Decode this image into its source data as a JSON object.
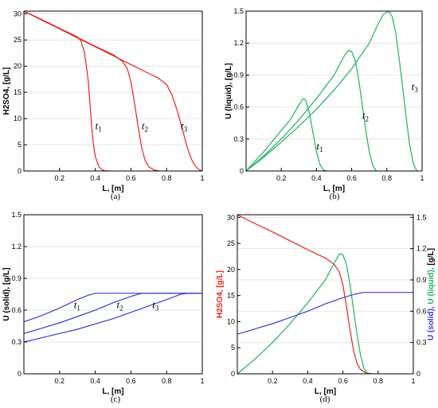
{
  "colors": {
    "red": "#e8241c",
    "green": "#20b060",
    "blue": "#3a3ad8",
    "grid": "#e4e4e4"
  },
  "chart_data": [
    {
      "id": "a",
      "type": "line",
      "panel_label": "(a)",
      "xlabel": "L, [m]",
      "ylabel": "H2SO4, [g/L]",
      "xlim": [
        0,
        1
      ],
      "ylim": [
        0,
        30.5
      ],
      "xticks": [
        0.2,
        0.4,
        0.6,
        0.8,
        1
      ],
      "xtick_labels": [
        "0.2",
        "0.4",
        "0.6",
        "0.8",
        "1"
      ],
      "yticks": [
        0,
        5,
        10,
        15,
        20,
        25,
        30
      ],
      "ytick_labels": [
        "0",
        "5",
        "10",
        "15",
        "20",
        "25",
        "30"
      ],
      "grid": true,
      "series": [
        {
          "label": "t",
          "sub": "1",
          "label_at": [
            0.4,
            8.0
          ],
          "color": "#e8241c",
          "x": [
            0,
            0.1,
            0.2,
            0.3,
            0.32,
            0.34,
            0.36,
            0.37,
            0.38,
            0.39,
            0.4,
            0.42,
            0.44,
            0.46,
            0.48
          ],
          "y": [
            30.5,
            28.9,
            27.2,
            25.6,
            24.8,
            22.5,
            17.5,
            13.0,
            8.5,
            5.0,
            2.8,
            0.8,
            0.2,
            0,
            0
          ]
        },
        {
          "label": "t",
          "sub": "2",
          "label_at": [
            0.66,
            8.0
          ],
          "color": "#e8241c",
          "x": [
            0,
            0.1,
            0.2,
            0.3,
            0.4,
            0.5,
            0.55,
            0.58,
            0.6,
            0.62,
            0.64,
            0.66,
            0.68,
            0.7,
            0.73,
            0.76
          ],
          "y": [
            30.5,
            28.8,
            27.2,
            25.5,
            23.8,
            22.2,
            21.0,
            19.5,
            17.0,
            13.0,
            8.5,
            4.5,
            2.0,
            0.8,
            0.2,
            0
          ]
        },
        {
          "label": "t",
          "sub": "3",
          "label_at": [
            0.88,
            8.0
          ],
          "color": "#e8241c",
          "x": [
            0,
            0.1,
            0.2,
            0.3,
            0.4,
            0.5,
            0.6,
            0.7,
            0.75,
            0.8,
            0.83,
            0.86,
            0.88,
            0.9,
            0.92,
            0.94,
            0.96,
            0.98,
            1.0
          ],
          "y": [
            30.5,
            28.8,
            27.1,
            25.4,
            23.7,
            22.0,
            20.3,
            18.6,
            17.8,
            16.5,
            14.5,
            11.5,
            9.0,
            6.5,
            4.0,
            2.2,
            1.0,
            0.3,
            0
          ]
        }
      ]
    },
    {
      "id": "b",
      "type": "line",
      "panel_label": "(b)",
      "xlabel": "L, [m]",
      "ylabel": "U (liquid), [g/L]",
      "xlim": [
        0,
        1
      ],
      "ylim": [
        0,
        1.5
      ],
      "xticks": [
        0.2,
        0.4,
        0.6,
        0.8,
        1
      ],
      "xtick_labels": [
        "0.2",
        "0.4",
        "0.6",
        "0.8",
        "1"
      ],
      "yticks": [
        0,
        0.3,
        0.6,
        0.9,
        1.2,
        1.5
      ],
      "ytick_labels": [
        "0",
        "0.3",
        "0.6",
        "0.9",
        "1.2",
        "1.5"
      ],
      "grid": true,
      "series": [
        {
          "label": "t",
          "sub": "1",
          "label_at": [
            0.4,
            0.2
          ],
          "color": "#20b060",
          "x": [
            0,
            0.05,
            0.1,
            0.15,
            0.2,
            0.25,
            0.3,
            0.32,
            0.33,
            0.34,
            0.36,
            0.38,
            0.4,
            0.42,
            0.44,
            0.46
          ],
          "y": [
            0,
            0.09,
            0.18,
            0.28,
            0.38,
            0.48,
            0.62,
            0.67,
            0.68,
            0.66,
            0.54,
            0.36,
            0.18,
            0.06,
            0.01,
            0
          ]
        },
        {
          "label": "t",
          "sub": "2",
          "label_at": [
            0.66,
            0.49
          ],
          "color": "#20b060",
          "x": [
            0,
            0.1,
            0.2,
            0.3,
            0.4,
            0.5,
            0.55,
            0.58,
            0.6,
            0.62,
            0.64,
            0.66,
            0.68,
            0.7,
            0.72,
            0.74
          ],
          "y": [
            0,
            0.14,
            0.3,
            0.48,
            0.68,
            0.9,
            1.06,
            1.13,
            1.12,
            1.04,
            0.86,
            0.62,
            0.38,
            0.18,
            0.05,
            0
          ]
        },
        {
          "label": "t",
          "sub": "3",
          "label_at": [
            0.94,
            0.76
          ],
          "color": "#20b060",
          "x": [
            0,
            0.1,
            0.2,
            0.3,
            0.4,
            0.5,
            0.6,
            0.7,
            0.75,
            0.78,
            0.81,
            0.83,
            0.85,
            0.87,
            0.89,
            0.91,
            0.93,
            0.95,
            0.97
          ],
          "y": [
            0,
            0.13,
            0.27,
            0.42,
            0.58,
            0.76,
            0.96,
            1.2,
            1.38,
            1.47,
            1.5,
            1.45,
            1.3,
            1.05,
            0.78,
            0.5,
            0.24,
            0.07,
            0
          ]
        }
      ]
    },
    {
      "id": "c",
      "type": "line",
      "panel_label": "(c)",
      "xlabel": "L, [m]",
      "ylabel": "U (solid), [g/L]",
      "xlim": [
        0,
        1
      ],
      "ylim": [
        0,
        1.5
      ],
      "xticks": [
        0.2,
        0.4,
        0.6,
        0.8,
        1
      ],
      "xtick_labels": [
        "0.2",
        "0.4",
        "0.6",
        "0.8",
        "1"
      ],
      "yticks": [
        0,
        0.3,
        0.6,
        0.9,
        1.2,
        1.5
      ],
      "ytick_labels": [
        "0",
        "0.3",
        "0.6",
        "0.9",
        "1.2",
        "1.5"
      ],
      "grid": true,
      "series": [
        {
          "label": "t",
          "sub": "1",
          "label_at": [
            0.28,
            0.62
          ],
          "color": "#3a3ad8",
          "x": [
            0,
            0.1,
            0.2,
            0.3,
            0.36,
            0.4,
            0.42,
            1.0
          ],
          "y": [
            0.49,
            0.55,
            0.62,
            0.7,
            0.74,
            0.76,
            0.76,
            0.76
          ]
        },
        {
          "label": "t",
          "sub": "2",
          "label_at": [
            0.52,
            0.62
          ],
          "color": "#3a3ad8",
          "x": [
            0,
            0.1,
            0.2,
            0.3,
            0.4,
            0.5,
            0.6,
            0.66,
            0.68,
            1.0
          ],
          "y": [
            0.38,
            0.43,
            0.48,
            0.54,
            0.6,
            0.67,
            0.73,
            0.76,
            0.76,
            0.76
          ]
        },
        {
          "label": "t",
          "sub": "3",
          "label_at": [
            0.72,
            0.62
          ],
          "color": "#3a3ad8",
          "x": [
            0,
            0.1,
            0.2,
            0.3,
            0.4,
            0.5,
            0.6,
            0.7,
            0.8,
            0.88,
            0.92,
            1.0
          ],
          "y": [
            0.3,
            0.34,
            0.38,
            0.42,
            0.47,
            0.52,
            0.58,
            0.64,
            0.7,
            0.75,
            0.76,
            0.76
          ]
        }
      ]
    },
    {
      "id": "d",
      "type": "line",
      "panel_label": "(d)",
      "xlabel": "L, [m]",
      "ylabel": "H2SO4, [g/L]",
      "ylabel_right_parts": [
        {
          "text": "U (solid), ",
          "color": "#3a3ad8"
        },
        {
          "text": "U (liquid), ",
          "color": "#20b060"
        },
        {
          "text": "[g/L]",
          "color": "#000000"
        }
      ],
      "xlim": [
        0,
        1
      ],
      "ylim": [
        0,
        30.5
      ],
      "ylim_right": [
        0,
        1.525
      ],
      "xticks": [
        0.2,
        0.4,
        0.6,
        0.8,
        1
      ],
      "xtick_labels": [
        "0.2",
        "0.4",
        "0.6",
        "0.8",
        "1"
      ],
      "yticks": [
        0,
        5,
        10,
        15,
        20,
        25,
        30
      ],
      "ytick_labels": [
        "0",
        "5",
        "10",
        "15",
        "20",
        "25",
        "30"
      ],
      "yticks_right": [
        0,
        0.3,
        0.6,
        0.9,
        1.2,
        1.5
      ],
      "ytick_labels_right": [
        "0",
        "0.3",
        "0.6",
        "0.9",
        "1.2",
        "1.5"
      ],
      "grid": true,
      "series": [
        {
          "name": "H2SO4",
          "axis": "left",
          "color": "#e8241c",
          "x": [
            0,
            0.1,
            0.2,
            0.3,
            0.4,
            0.5,
            0.55,
            0.58,
            0.6,
            0.62,
            0.64,
            0.66,
            0.68,
            0.7,
            0.73,
            0.76
          ],
          "y": [
            30.5,
            28.8,
            27.2,
            25.5,
            23.8,
            22.2,
            21.0,
            19.5,
            17.0,
            13.0,
            8.5,
            4.5,
            2.0,
            0.8,
            0.2,
            0
          ]
        },
        {
          "name": "U (liquid)",
          "axis": "right",
          "color": "#20b060",
          "x": [
            0,
            0.1,
            0.2,
            0.3,
            0.4,
            0.5,
            0.55,
            0.58,
            0.6,
            0.62,
            0.64,
            0.66,
            0.68,
            0.7,
            0.72,
            0.74
          ],
          "y": [
            0,
            0.14,
            0.3,
            0.48,
            0.68,
            0.9,
            1.06,
            1.15,
            1.14,
            1.05,
            0.86,
            0.62,
            0.38,
            0.18,
            0.05,
            0
          ]
        },
        {
          "name": "U (solid)",
          "axis": "right",
          "color": "#3a3ad8",
          "x": [
            0,
            0.1,
            0.2,
            0.3,
            0.4,
            0.5,
            0.6,
            0.66,
            0.7,
            0.72,
            1.0
          ],
          "y": [
            0.38,
            0.43,
            0.48,
            0.54,
            0.6,
            0.67,
            0.73,
            0.76,
            0.775,
            0.78,
            0.78
          ]
        }
      ]
    }
  ]
}
